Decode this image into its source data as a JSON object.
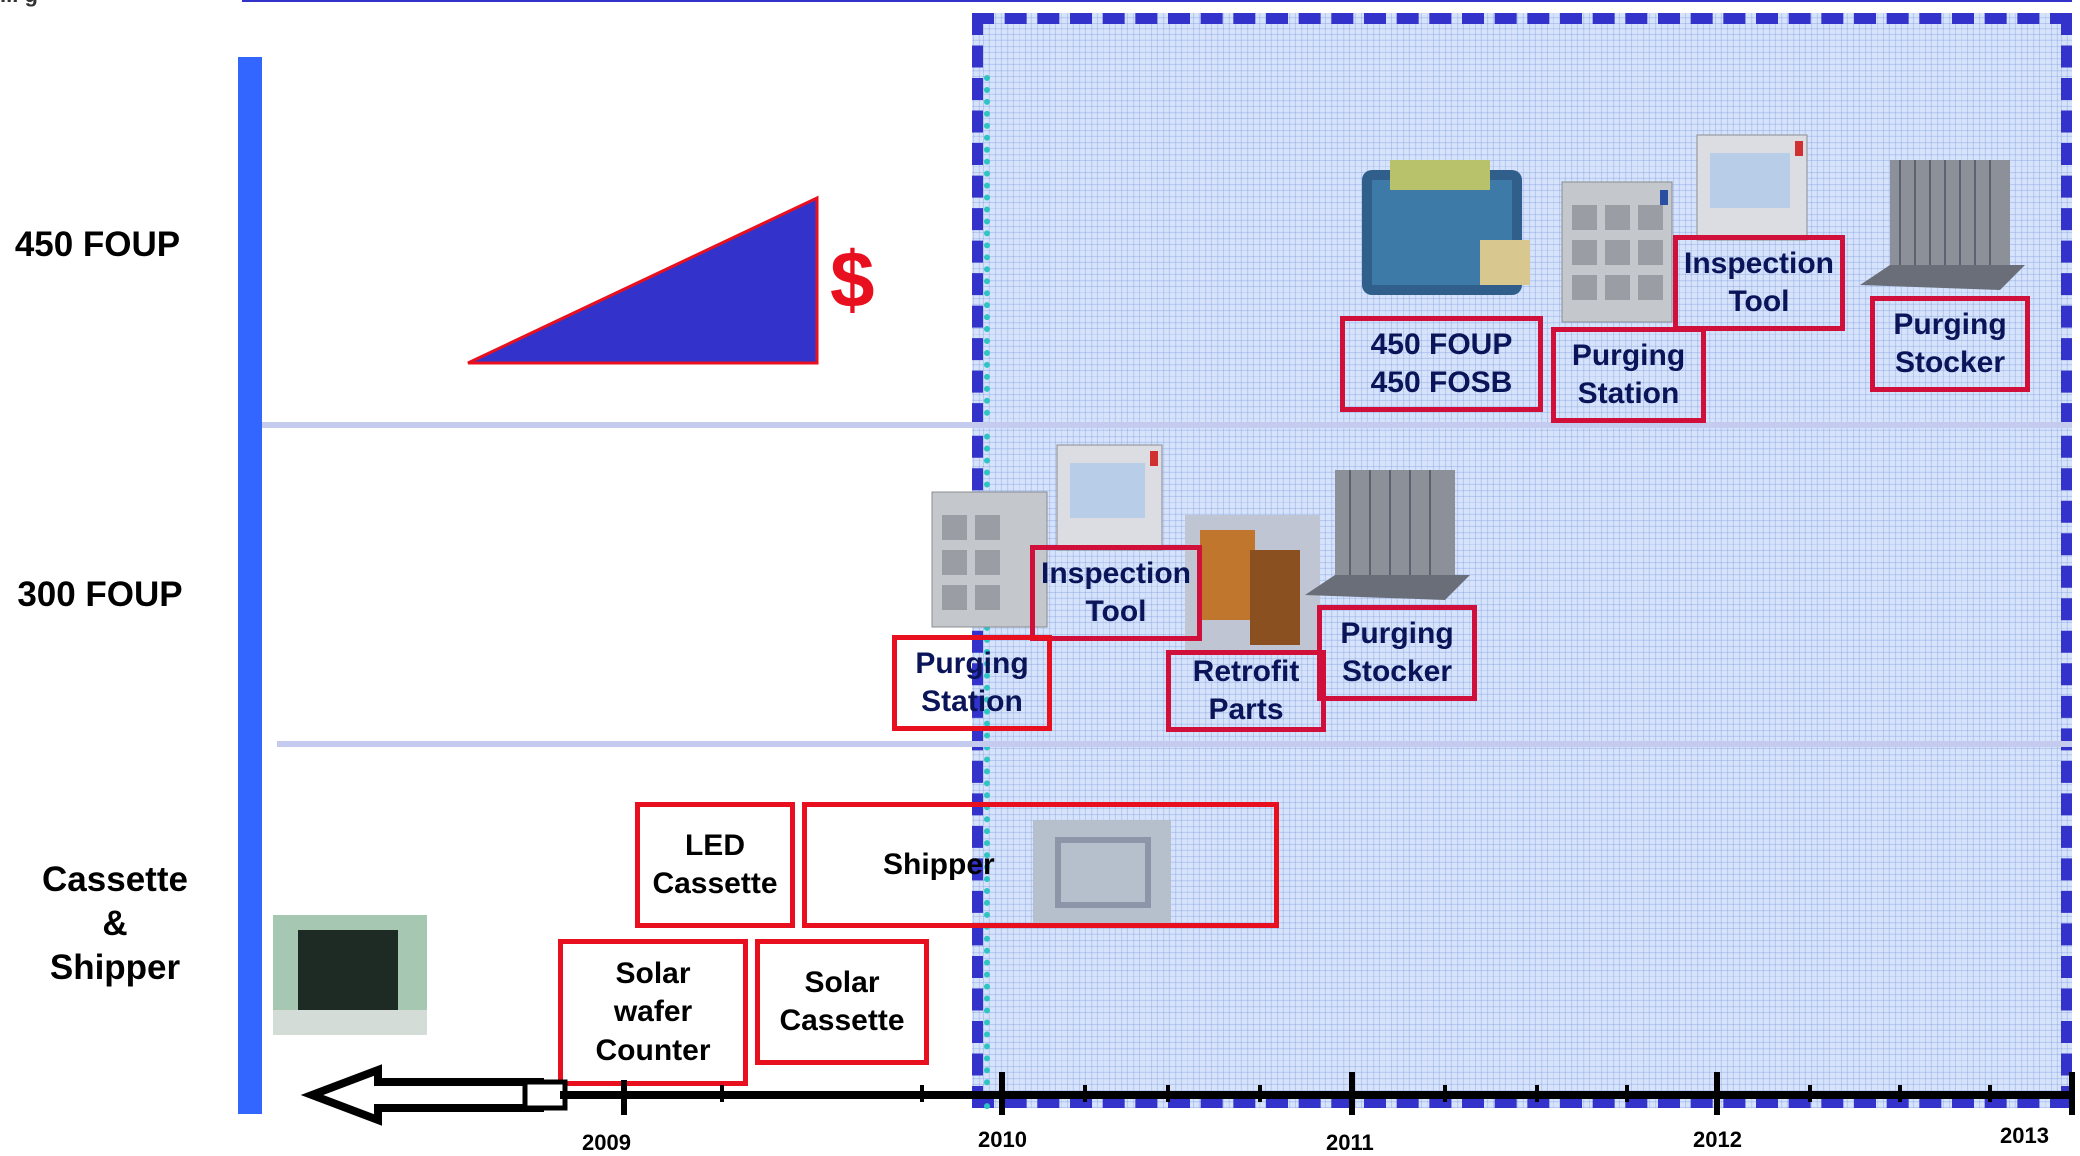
{
  "top_label": "... g",
  "rows": {
    "foup450": "450 FOUP",
    "foup300": "300 FOUP",
    "cassette": "Cassette\n&\nShipper"
  },
  "cost_symbol": "$",
  "boxes": {
    "foup450_fosb": "450 FOUP\n450 FOSB",
    "purging_station_450": "Purging\nStation",
    "inspection_tool_450": "Inspection\nTool",
    "purging_stocker_450": "Purging\nStocker",
    "inspection_tool_300": "Inspection\nTool",
    "purging_station_300": "Purging\nStation",
    "retrofit_parts": "Retrofit\nParts",
    "purging_stocker_300": "Purging\nStocker",
    "led_cassette": "LED\nCassette",
    "shipper": "Shipper",
    "solar_wafer_counter": "Solar\nwafer\nCounter",
    "solar_cassette": "Solar\nCassette"
  },
  "years": [
    "2009",
    "2010",
    "2011",
    "2012",
    "2013"
  ],
  "colors": {
    "axis_bar": "#3366ff",
    "triangle": "#3333cc",
    "dollar": "#e8101e",
    "box_red": "#e8101e",
    "box_crimson": "#d0103a",
    "hatch_border": "#3333cc"
  }
}
